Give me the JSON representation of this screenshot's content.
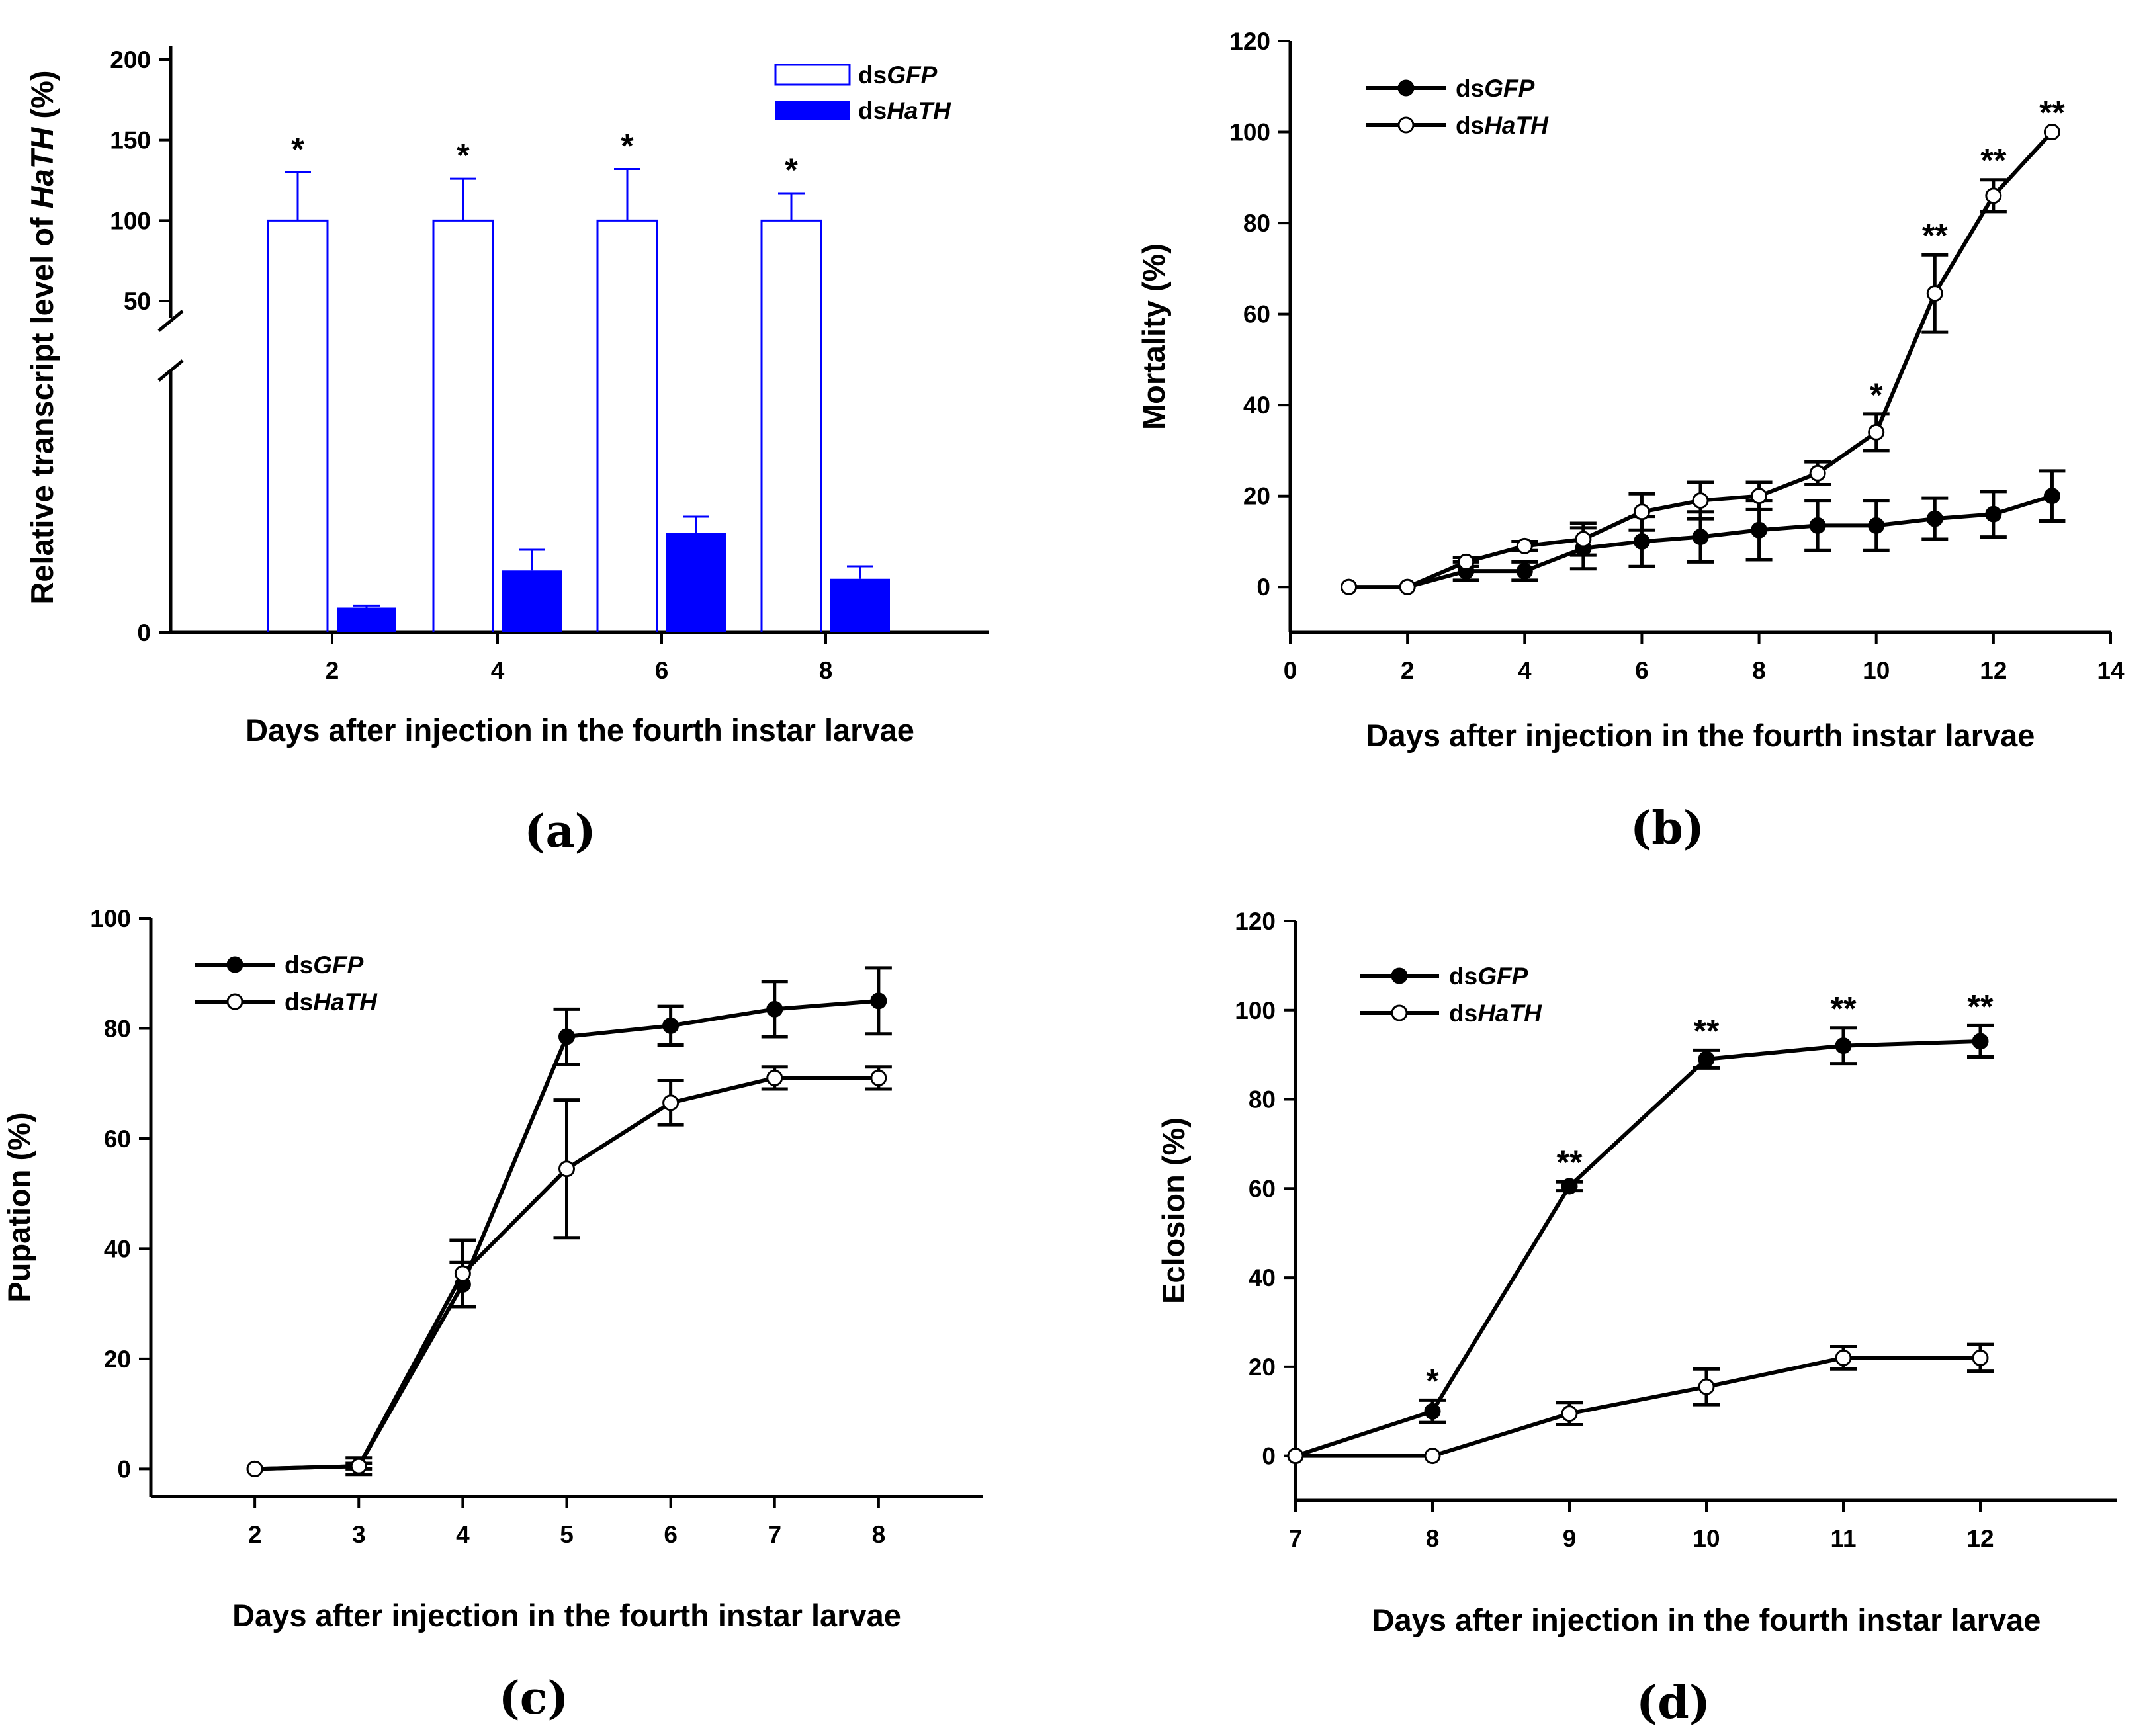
{
  "colors": {
    "axis": "#000000",
    "blue": "#0000ff",
    "white": "#ffffff"
  },
  "chart_data": [
    {
      "type": "bar",
      "panel_label": "(a)",
      "xlabel": "Days after injection in the fourth instar larvae",
      "ylabel_prefix": "Relative transcript level of ",
      "ylabel_italic": "HaTH",
      "ylabel_suffix": " (%)",
      "categories": [
        "2",
        "4",
        "6",
        "8"
      ],
      "yticks_upper": [
        "50",
        "100",
        "150",
        "200"
      ],
      "ytick_zero": "0",
      "axis_break": true,
      "series": [
        {
          "name_prefix": "ds",
          "name_italic": "GFP",
          "fill": "none",
          "values": [
            100,
            100,
            100,
            100
          ],
          "errors": [
            30,
            26,
            32,
            17
          ]
        },
        {
          "name_prefix": "ds",
          "name_italic": "HaTH",
          "fill": "#0000ff",
          "values": [
            6,
            15,
            24,
            13
          ],
          "errors": [
            0.5,
            5,
            4,
            3
          ]
        }
      ],
      "annotations": [
        "*",
        "*",
        "*",
        "*"
      ]
    },
    {
      "type": "line",
      "panel_label": "(b)",
      "xlabel": "Days after injection in the fourth instar larvae",
      "ylabel": "Mortality (%)",
      "xlim": [
        0,
        14
      ],
      "ylim": [
        -10,
        120
      ],
      "xticks": [
        "0",
        "2",
        "4",
        "6",
        "8",
        "10",
        "12",
        "14"
      ],
      "yticks": [
        "0",
        "20",
        "40",
        "60",
        "80",
        "100",
        "120"
      ],
      "series": [
        {
          "name_prefix": "ds",
          "name_italic": "GFP",
          "marker": "filled",
          "x": [
            1,
            2,
            3,
            4,
            5,
            6,
            7,
            8,
            9,
            10,
            11,
            12,
            13
          ],
          "y": [
            0,
            0,
            3.5,
            3.5,
            8.5,
            10,
            11,
            12.5,
            13.5,
            13.5,
            15,
            16,
            20
          ],
          "err": [
            0,
            0,
            2,
            2,
            4.5,
            5.5,
            5.5,
            6.5,
            5.5,
            5.5,
            4.5,
            5,
            5.5
          ]
        },
        {
          "name_prefix": "ds",
          "name_italic": "HaTH",
          "marker": "open",
          "x": [
            1,
            2,
            3,
            4,
            5,
            6,
            7,
            8,
            9,
            10,
            11,
            12,
            13
          ],
          "y": [
            0,
            0,
            5.5,
            9,
            10.5,
            16.5,
            19,
            20,
            25,
            34,
            64.5,
            86,
            100
          ],
          "err": [
            0,
            0,
            1,
            1,
            3.5,
            4,
            4,
            3,
            2.5,
            4,
            8.5,
            3.5,
            0
          ]
        }
      ],
      "annotations": [
        {
          "x": 10,
          "y": 34,
          "text": "*"
        },
        {
          "x": 11,
          "y": 64.5,
          "text": "**"
        },
        {
          "x": 12,
          "y": 86,
          "text": "**"
        },
        {
          "x": 13,
          "y": 100,
          "text": "**"
        }
      ]
    },
    {
      "type": "line",
      "panel_label": "(c)",
      "xlabel": "Days after injection in the fourth instar larvae",
      "ylabel": "Pupation (%)",
      "xlim": [
        1,
        9
      ],
      "ylim": [
        -5,
        100
      ],
      "xticks": [
        "2",
        "3",
        "4",
        "5",
        "6",
        "7",
        "8"
      ],
      "yticks": [
        "0",
        "20",
        "40",
        "60",
        "80",
        "100"
      ],
      "series": [
        {
          "name_prefix": "ds",
          "name_italic": "GFP",
          "marker": "filled",
          "x": [
            2,
            3,
            4,
            5,
            6,
            7,
            8
          ],
          "y": [
            0,
            0.5,
            33.5,
            78.5,
            80.5,
            83.5,
            85
          ],
          "err": [
            0,
            1.5,
            4,
            5,
            3.5,
            5,
            6
          ]
        },
        {
          "name_prefix": "ds",
          "name_italic": "HaTH",
          "marker": "open",
          "x": [
            2,
            3,
            4,
            5,
            6,
            7,
            8
          ],
          "y": [
            0,
            0.5,
            35.5,
            54.5,
            66.5,
            71,
            71
          ],
          "err": [
            0,
            0.5,
            6,
            12.5,
            4,
            2,
            2
          ]
        }
      ],
      "annotations": []
    },
    {
      "type": "line",
      "panel_label": "(d)",
      "xlabel": "Days after injection in the fourth instar larvae",
      "ylabel": "Eclosion (%)",
      "xlim": [
        7,
        13
      ],
      "ylim": [
        -10,
        120
      ],
      "xticks": [
        "7",
        "8",
        "9",
        "10",
        "11",
        "12"
      ],
      "yticks": [
        "0",
        "20",
        "40",
        "60",
        "80",
        "100",
        "120"
      ],
      "series": [
        {
          "name_prefix": "ds",
          "name_italic": "GFP",
          "marker": "filled",
          "x": [
            7,
            8,
            9,
            10,
            11,
            12
          ],
          "y": [
            0,
            10,
            60.5,
            89,
            92,
            93
          ],
          "err": [
            0,
            2.5,
            1,
            2,
            4,
            3.5
          ]
        },
        {
          "name_prefix": "ds",
          "name_italic": "HaTH",
          "marker": "open",
          "x": [
            7,
            8,
            9,
            10,
            11,
            12
          ],
          "y": [
            0,
            0,
            9.5,
            15.5,
            22,
            22
          ],
          "err": [
            0,
            0,
            2.5,
            4,
            2.5,
            3
          ]
        }
      ],
      "annotations": [
        {
          "x": 8,
          "y": 10,
          "text": "*"
        },
        {
          "x": 9,
          "y": 60.5,
          "text": "**"
        },
        {
          "x": 10,
          "y": 89,
          "text": "**"
        },
        {
          "x": 11,
          "y": 92,
          "text": "**"
        },
        {
          "x": 12,
          "y": 93,
          "text": "**"
        }
      ]
    }
  ]
}
